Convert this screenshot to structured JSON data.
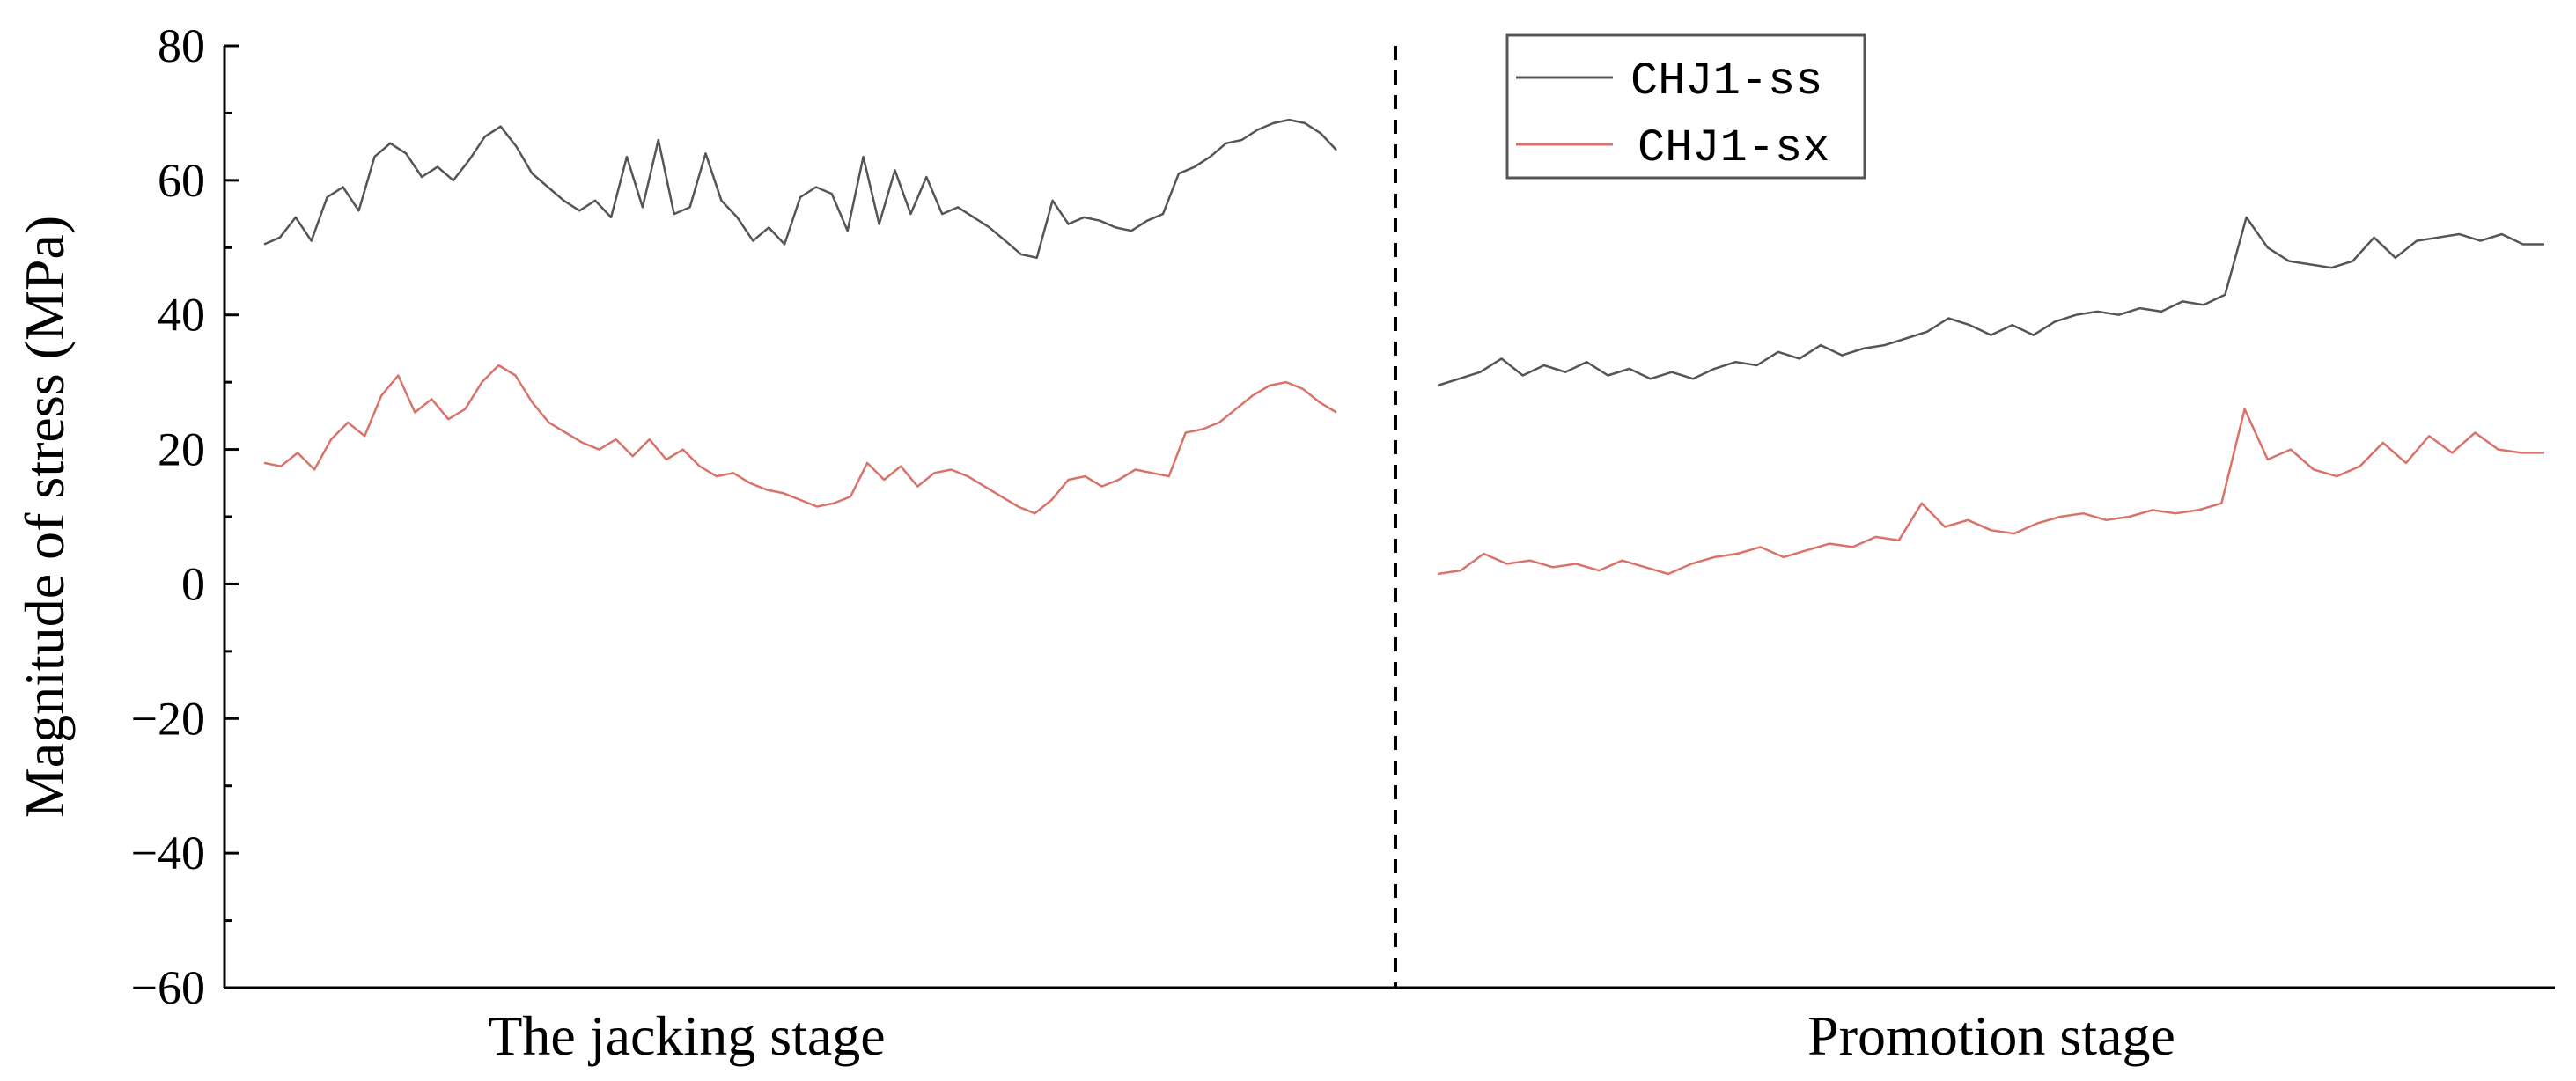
{
  "chart_data": {
    "type": "line",
    "ylabel": "Magnitude of stress (MPa)",
    "ylim": [
      -60,
      80
    ],
    "yticks": [
      80,
      60,
      40,
      20,
      0,
      -20,
      -40,
      -60
    ],
    "ytick_labels": [
      "80",
      "60",
      "40",
      "20",
      "0",
      "−20",
      "−40",
      "−60"
    ],
    "stage_labels": [
      "The jacking stage",
      "Promotion stage"
    ],
    "divider": "dashed vertical line between stages",
    "grid": false,
    "legend_position": "top-center",
    "series": [
      {
        "name": "CHJ1-ss",
        "color": "#555555",
        "segments": [
          [
            50.5,
            51.5,
            54.5,
            51.0,
            57.5,
            59.0,
            55.5,
            63.5,
            65.5,
            64.0,
            60.5,
            62.0,
            60.0,
            63.0,
            66.5,
            68.0,
            65.0,
            61.0,
            59.0,
            57.0,
            55.5,
            57.0,
            54.5,
            63.5,
            56.0,
            66.0,
            55.0,
            56.0,
            64.0,
            57.0,
            54.5,
            51.0,
            53.0,
            50.5,
            57.5,
            59.0,
            58.0,
            52.5,
            63.5,
            53.5,
            61.5,
            55.0,
            60.5,
            55.0,
            56.0,
            54.5,
            53.0,
            51.0,
            49.0,
            48.5,
            57.0,
            53.5,
            54.5,
            54.0,
            53.0,
            52.5,
            54.0,
            55.0,
            61.0,
            62.0,
            63.5,
            65.5,
            66.0,
            67.5,
            68.5,
            69.0,
            68.5,
            67.0,
            64.5
          ],
          [
            29.5,
            30.5,
            31.5,
            33.5,
            31.0,
            32.5,
            31.5,
            33.0,
            31.0,
            32.0,
            30.5,
            31.5,
            30.5,
            32.0,
            33.0,
            32.5,
            34.5,
            33.5,
            35.5,
            34.0,
            35.0,
            35.5,
            36.5,
            37.5,
            39.5,
            38.5,
            37.0,
            38.5,
            37.0,
            39.0,
            40.0,
            40.5,
            40.0,
            41.0,
            40.5,
            42.0,
            41.5,
            43.0,
            54.5,
            50.0,
            48.0,
            47.5,
            47.0,
            48.0,
            51.5,
            48.5,
            51.0,
            51.5,
            52.0,
            51.0,
            52.0,
            50.5,
            50.5
          ]
        ]
      },
      {
        "name": "CHJ1-sx",
        "color": "#d9736a",
        "segments": [
          [
            18.0,
            17.5,
            19.5,
            17.0,
            21.5,
            24.0,
            22.0,
            28.0,
            31.0,
            25.5,
            27.5,
            24.5,
            26.0,
            30.0,
            32.5,
            31.0,
            27.0,
            24.0,
            22.5,
            21.0,
            20.0,
            21.5,
            19.0,
            21.5,
            18.5,
            20.0,
            17.5,
            16.0,
            16.5,
            15.0,
            14.0,
            13.5,
            12.5,
            11.5,
            12.0,
            13.0,
            18.0,
            15.5,
            17.5,
            14.5,
            16.5,
            17.0,
            16.0,
            14.5,
            13.0,
            11.5,
            10.5,
            12.5,
            15.5,
            16.0,
            14.5,
            15.5,
            17.0,
            16.5,
            16.0,
            22.5,
            23.0,
            24.0,
            26.0,
            28.0,
            29.5,
            30.0,
            29.0,
            27.0,
            25.5
          ],
          [
            1.5,
            2.0,
            4.5,
            3.0,
            3.5,
            2.5,
            3.0,
            2.0,
            3.5,
            2.5,
            1.5,
            3.0,
            4.0,
            4.5,
            5.5,
            4.0,
            5.0,
            6.0,
            5.5,
            7.0,
            6.5,
            12.0,
            8.5,
            9.5,
            8.0,
            7.5,
            9.0,
            10.0,
            10.5,
            9.5,
            10.0,
            11.0,
            10.5,
            11.0,
            12.0,
            26.0,
            18.5,
            20.0,
            17.0,
            16.0,
            17.5,
            21.0,
            18.0,
            22.0,
            19.5,
            22.5,
            20.0,
            19.5,
            19.5
          ]
        ]
      }
    ]
  }
}
